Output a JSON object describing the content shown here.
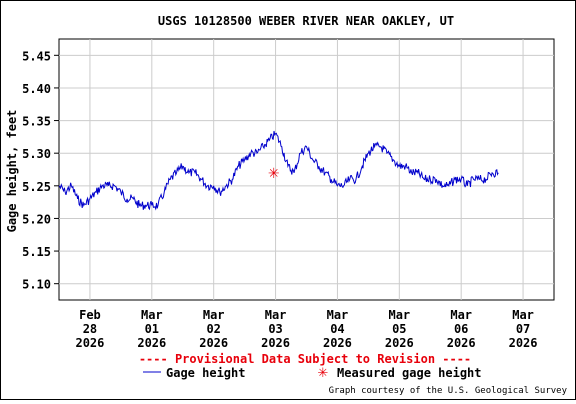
{
  "chart_data": {
    "type": "line",
    "title": "USGS 10128500 WEBER RIVER NEAR OAKLEY, UT",
    "ylabel": "Gage height, feet",
    "xlabel": "",
    "ylim": [
      5.075,
      5.475
    ],
    "yticks": [
      "5.10",
      "5.15",
      "5.20",
      "5.25",
      "5.30",
      "5.35",
      "5.40",
      "5.45"
    ],
    "xlim_days": [
      -0.5,
      7.5
    ],
    "xticks": [
      {
        "month": "Feb",
        "day": "28",
        "year": "2026"
      },
      {
        "month": "Mar",
        "day": "01",
        "year": "2026"
      },
      {
        "month": "Mar",
        "day": "02",
        "year": "2026"
      },
      {
        "month": "Mar",
        "day": "03",
        "year": "2026"
      },
      {
        "month": "Mar",
        "day": "04",
        "year": "2026"
      },
      {
        "month": "Mar",
        "day": "05",
        "year": "2026"
      },
      {
        "month": "Mar",
        "day": "06",
        "year": "2026"
      },
      {
        "month": "Mar",
        "day": "07",
        "year": "2026"
      }
    ],
    "grid": true,
    "series": [
      {
        "name": "Gage height",
        "color": "#0000cc",
        "days": [
          -0.5,
          -0.4,
          -0.3,
          -0.2,
          -0.1,
          0.0,
          0.1,
          0.2,
          0.3,
          0.4,
          0.5,
          0.6,
          0.7,
          0.8,
          0.9,
          1.0,
          1.1,
          1.2,
          1.3,
          1.4,
          1.5,
          1.6,
          1.7,
          1.8,
          1.9,
          2.0,
          2.1,
          2.2,
          2.3,
          2.4,
          2.5,
          2.6,
          2.7,
          2.8,
          2.9,
          3.0,
          3.1,
          3.2,
          3.3,
          3.4,
          3.5,
          3.6,
          3.7,
          3.8,
          3.9,
          4.0,
          4.1,
          4.2,
          4.3,
          4.4,
          4.5,
          4.6,
          4.7,
          4.8,
          4.9,
          5.0,
          5.1,
          5.2,
          5.3,
          5.4,
          5.5,
          5.6,
          5.7,
          5.8,
          5.9,
          6.0,
          6.1,
          6.2,
          6.3,
          6.4,
          6.5,
          6.6
        ],
        "values": [
          5.25,
          5.24,
          5.25,
          5.23,
          5.22,
          5.23,
          5.24,
          5.25,
          5.25,
          5.25,
          5.24,
          5.23,
          5.23,
          5.22,
          5.22,
          5.22,
          5.22,
          5.24,
          5.26,
          5.27,
          5.28,
          5.27,
          5.27,
          5.26,
          5.25,
          5.25,
          5.24,
          5.25,
          5.26,
          5.28,
          5.29,
          5.3,
          5.3,
          5.31,
          5.32,
          5.33,
          5.31,
          5.28,
          5.27,
          5.3,
          5.31,
          5.29,
          5.28,
          5.27,
          5.26,
          5.25,
          5.25,
          5.26,
          5.26,
          5.28,
          5.3,
          5.31,
          5.31,
          5.3,
          5.29,
          5.28,
          5.28,
          5.27,
          5.27,
          5.26,
          5.26,
          5.26,
          5.25,
          5.25,
          5.26,
          5.26,
          5.25,
          5.26,
          5.26,
          5.26,
          5.27,
          5.27
        ]
      }
    ],
    "measured": {
      "name": "Measured gage height",
      "day": 2.97,
      "value": 5.27,
      "color": "#e8000b"
    }
  },
  "provisional_text": "---- Provisional Data Subject to Revision ----",
  "legend": {
    "line_label": "Gage height",
    "marker_label": "Measured gage height",
    "marker_glyph": "✳"
  },
  "credit": "Graph courtesy of the U.S. Geological Survey"
}
